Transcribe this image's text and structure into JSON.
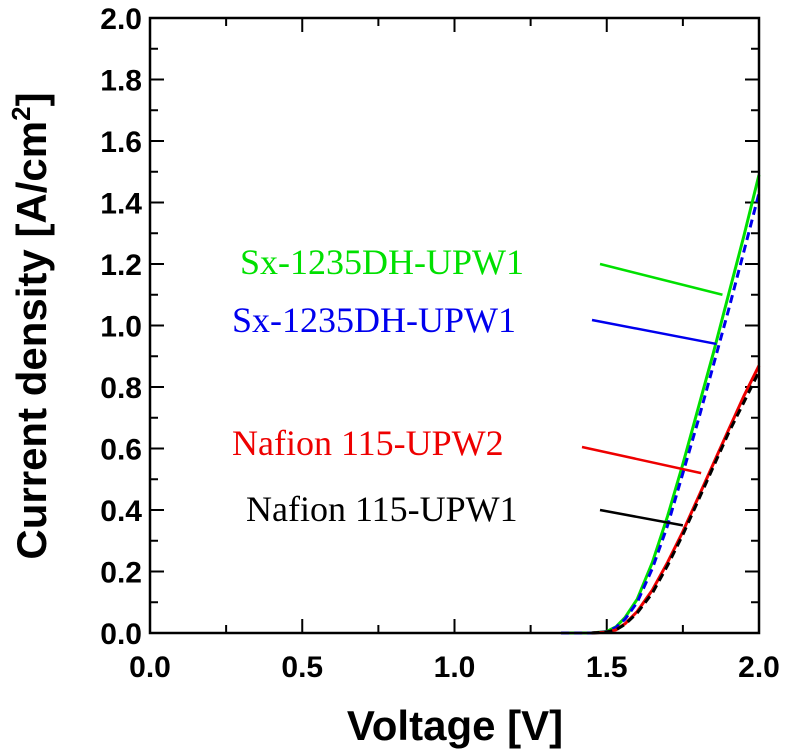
{
  "chart_data": {
    "type": "line",
    "xlabel": "Voltage [V]",
    "ylabel": "Current density [A/cm²]",
    "ylabel_parts": {
      "main": "Current density [A/cm",
      "sup": "2",
      "close": "]"
    },
    "xlim": [
      0.0,
      2.0
    ],
    "ylim": [
      0.0,
      2.0
    ],
    "xticks": [
      "0.0",
      "0.5",
      "1.0",
      "1.5",
      "2.0"
    ],
    "yticks": [
      "0.0",
      "0.2",
      "0.4",
      "0.6",
      "0.8",
      "1.0",
      "1.2",
      "1.4",
      "1.6",
      "1.8",
      "2.0"
    ],
    "grid": false,
    "series": [
      {
        "name": "Sx-1235DH-UPW1",
        "color": "#00e000",
        "dash": "solid",
        "x": [
          1.35,
          1.45,
          1.5,
          1.53,
          1.56,
          1.6,
          1.65,
          1.7,
          1.75,
          1.8,
          1.85,
          1.9,
          1.95,
          2.0
        ],
        "y": [
          0.0,
          0.0,
          0.005,
          0.02,
          0.05,
          0.11,
          0.23,
          0.38,
          0.55,
          0.73,
          0.91,
          1.1,
          1.29,
          1.49
        ],
        "label_anchor": [
          1.88,
          1.1
        ]
      },
      {
        "name": "Sx-1235DH-UPW1",
        "color": "#0000ee",
        "dash": "dashed",
        "x": [
          1.35,
          1.45,
          1.5,
          1.53,
          1.56,
          1.6,
          1.65,
          1.7,
          1.75,
          1.8,
          1.85,
          1.9,
          1.95,
          2.0
        ],
        "y": [
          0.0,
          0.0,
          0.004,
          0.018,
          0.045,
          0.1,
          0.21,
          0.35,
          0.52,
          0.69,
          0.87,
          1.05,
          1.24,
          1.43
        ],
        "label_anchor": [
          1.86,
          0.94
        ]
      },
      {
        "name": "Nafion 115-UPW2",
        "color": "#ee0000",
        "dash": "solid",
        "x": [
          1.45,
          1.5,
          1.53,
          1.56,
          1.6,
          1.65,
          1.7,
          1.75,
          1.8,
          1.85,
          1.9,
          1.95,
          2.0
        ],
        "y": [
          0.0,
          0.003,
          0.01,
          0.03,
          0.07,
          0.14,
          0.23,
          0.33,
          0.44,
          0.55,
          0.66,
          0.77,
          0.87
        ],
        "label_anchor": [
          1.81,
          0.52
        ]
      },
      {
        "name": "Nafion 115-UPW1",
        "color": "#000000",
        "dash": "dashed",
        "x": [
          1.45,
          1.5,
          1.53,
          1.56,
          1.6,
          1.65,
          1.7,
          1.75,
          1.8,
          1.85,
          1.9,
          1.95,
          2.0
        ],
        "y": [
          0.0,
          0.003,
          0.01,
          0.028,
          0.065,
          0.13,
          0.22,
          0.32,
          0.43,
          0.54,
          0.65,
          0.75,
          0.85
        ],
        "label_anchor": [
          1.75,
          0.35
        ]
      }
    ]
  }
}
